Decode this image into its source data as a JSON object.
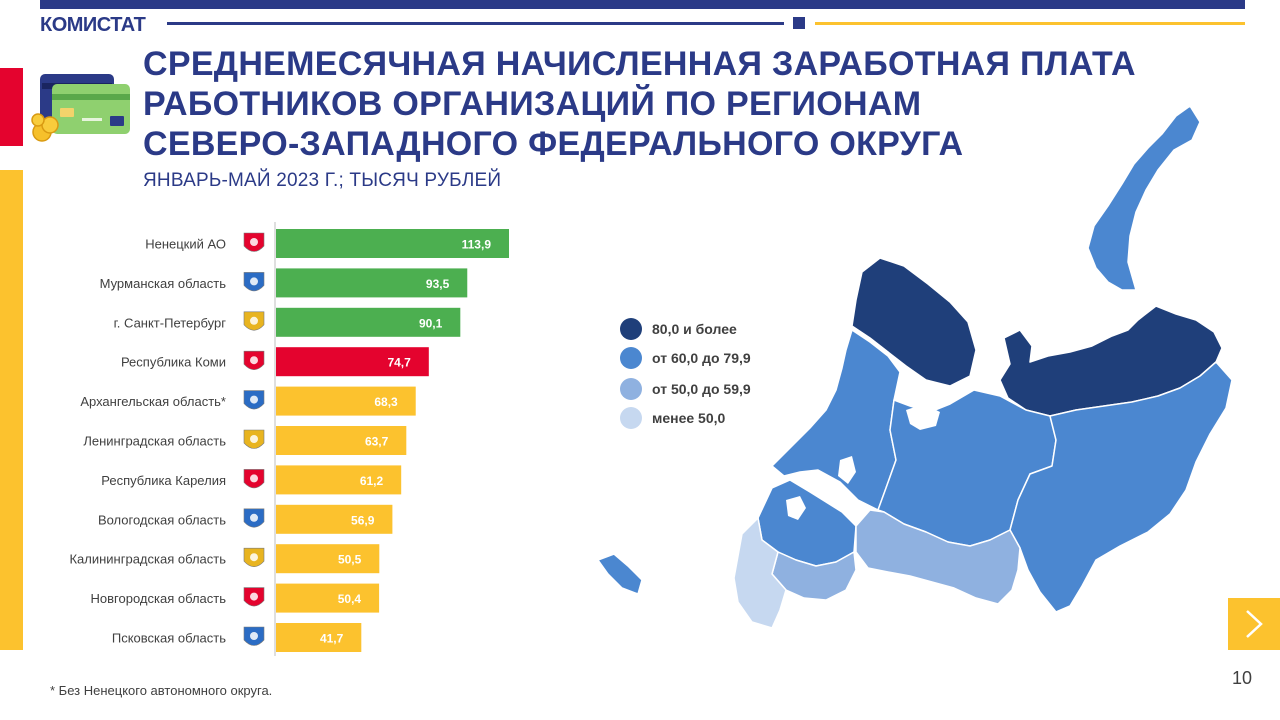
{
  "header": {
    "brand": "КОМИСТАТ"
  },
  "title_lines": [
    "СРЕДНЕМЕСЯЧНАЯ НАЧИСЛЕННАЯ ЗАРАБОТНАЯ ПЛАТА",
    "РАБОТНИКОВ ОРГАНИЗАЦИЙ ПО РЕГИОНАМ",
    "СЕВЕРО-ЗАПАДНОГО ФЕДЕРАЛЬНОГО ОКРУГА"
  ],
  "subtitle": "ЯНВАРЬ-МАЙ  2023 Г.; ТЫСЯЧ РУБЛЕЙ",
  "colors": {
    "brand_blue": "#2b3a87",
    "accent_red": "#e4032e",
    "accent_yellow": "#fcc22e",
    "bar_green": "#4caf50",
    "bar_red": "#e4032e",
    "bar_yellow": "#fcc22e"
  },
  "chart_data": {
    "type": "bar",
    "orientation": "horizontal",
    "categories": [
      "Ненецкий АО",
      "Мурманская область",
      "г. Санкт-Петербург",
      "Республика Коми",
      "Архангельская область*",
      "Ленинградская область",
      "Республика Карелия",
      "Вологодская область",
      "Калининградская область",
      "Новгородская область",
      "Псковская область"
    ],
    "values": [
      113.9,
      93.5,
      90.1,
      74.7,
      68.3,
      63.7,
      61.2,
      56.9,
      50.5,
      50.4,
      41.7
    ],
    "value_labels": [
      "113,9",
      "93,5",
      "90,1",
      "74,7",
      "68,3",
      "63,7",
      "61,2",
      "56,9",
      "50,5",
      "50,4",
      "41,7"
    ],
    "bar_colors": [
      "#4caf50",
      "#4caf50",
      "#4caf50",
      "#e4032e",
      "#fcc22e",
      "#fcc22e",
      "#fcc22e",
      "#fcc22e",
      "#fcc22e",
      "#fcc22e",
      "#fcc22e"
    ],
    "xlim": [
      0,
      113.9
    ]
  },
  "legend": [
    {
      "label": "80,0 и более",
      "color": "#1f3f7a"
    },
    {
      "label": "от 60,0 до 79,9",
      "color": "#4b87d0"
    },
    {
      "label": "от 50,0 до 59,9",
      "color": "#8fb1e0"
    },
    {
      "label": "менее 50,0",
      "color": "#c6d8f0"
    }
  ],
  "footnote": "* Без Ненецкого автономного округа.",
  "page_number": "10",
  "icons": {
    "logo": "credit-cards-coins-icon",
    "next": "chevron-right-icon",
    "emblems": "region-coat-of-arms-icon"
  }
}
